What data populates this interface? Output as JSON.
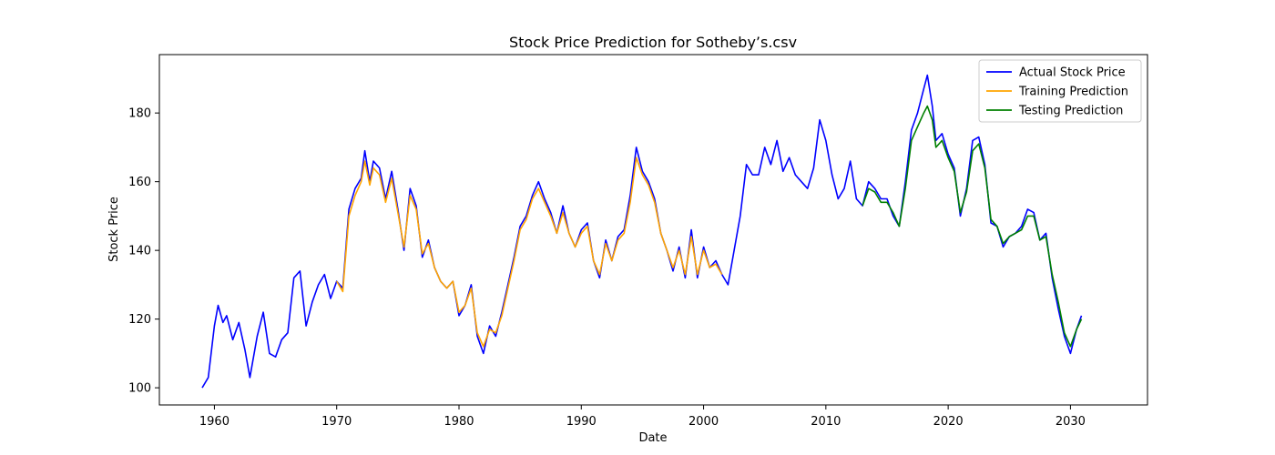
{
  "chart_data": {
    "type": "line",
    "title": "Stock Price Prediction for Sotheby’s.csv",
    "xlabel": "Date",
    "ylabel": "Stock Price",
    "xlim": [
      1955.5,
      2036.3
    ],
    "ylim": [
      95,
      197
    ],
    "x_ticks": [
      1960,
      1970,
      1980,
      1990,
      2000,
      2010,
      2020,
      2030
    ],
    "y_ticks": [
      100,
      120,
      140,
      160,
      180
    ],
    "grid": false,
    "legend_position": "top-right",
    "series": [
      {
        "name": "Actual Stock Price",
        "color": "#0000ff",
        "points": [
          [
            1959.0,
            100
          ],
          [
            1959.5,
            103
          ],
          [
            1960.0,
            118
          ],
          [
            1960.3,
            124
          ],
          [
            1960.7,
            119
          ],
          [
            1961.0,
            121
          ],
          [
            1961.5,
            114
          ],
          [
            1962.0,
            119
          ],
          [
            1962.5,
            111
          ],
          [
            1962.9,
            103
          ],
          [
            1963.5,
            115
          ],
          [
            1964.0,
            122
          ],
          [
            1964.5,
            110
          ],
          [
            1965.0,
            109
          ],
          [
            1965.5,
            114
          ],
          [
            1966.0,
            116
          ],
          [
            1966.5,
            132
          ],
          [
            1967.0,
            134
          ],
          [
            1967.5,
            118
          ],
          [
            1968.0,
            125
          ],
          [
            1968.5,
            130
          ],
          [
            1969.0,
            133
          ],
          [
            1969.5,
            126
          ],
          [
            1970.0,
            131
          ],
          [
            1970.5,
            129
          ],
          [
            1971.0,
            152
          ],
          [
            1971.5,
            158
          ],
          [
            1972.0,
            161
          ],
          [
            1972.3,
            169
          ],
          [
            1972.7,
            160
          ],
          [
            1973.0,
            166
          ],
          [
            1973.5,
            164
          ],
          [
            1974.0,
            155
          ],
          [
            1974.5,
            163
          ],
          [
            1975.0,
            152
          ],
          [
            1975.5,
            140
          ],
          [
            1976.0,
            158
          ],
          [
            1976.5,
            153
          ],
          [
            1977.0,
            138
          ],
          [
            1977.5,
            143
          ],
          [
            1978.0,
            135
          ],
          [
            1978.5,
            131
          ],
          [
            1979.0,
            129
          ],
          [
            1979.5,
            131
          ],
          [
            1980.0,
            121
          ],
          [
            1980.5,
            124
          ],
          [
            1981.0,
            130
          ],
          [
            1981.5,
            115
          ],
          [
            1982.0,
            110
          ],
          [
            1982.5,
            118
          ],
          [
            1983.0,
            115
          ],
          [
            1983.5,
            122
          ],
          [
            1984.0,
            130
          ],
          [
            1984.5,
            138
          ],
          [
            1985.0,
            147
          ],
          [
            1985.5,
            150
          ],
          [
            1986.0,
            156
          ],
          [
            1986.5,
            160
          ],
          [
            1987.0,
            155
          ],
          [
            1987.5,
            151
          ],
          [
            1988.0,
            145
          ],
          [
            1988.5,
            153
          ],
          [
            1989.0,
            145
          ],
          [
            1989.5,
            141
          ],
          [
            1990.0,
            146
          ],
          [
            1990.5,
            148
          ],
          [
            1991.0,
            137
          ],
          [
            1991.5,
            132
          ],
          [
            1992.0,
            143
          ],
          [
            1992.5,
            137
          ],
          [
            1993.0,
            144
          ],
          [
            1993.5,
            146
          ],
          [
            1994.0,
            156
          ],
          [
            1994.5,
            170
          ],
          [
            1995.0,
            163
          ],
          [
            1995.5,
            160
          ],
          [
            1996.0,
            155
          ],
          [
            1996.5,
            145
          ],
          [
            1997.0,
            140
          ],
          [
            1997.5,
            134
          ],
          [
            1998.0,
            141
          ],
          [
            1998.5,
            132
          ],
          [
            1999.0,
            146
          ],
          [
            1999.5,
            132
          ],
          [
            2000.0,
            141
          ],
          [
            2000.5,
            135
          ],
          [
            2001.0,
            137
          ],
          [
            2001.5,
            133
          ],
          [
            2002.0,
            130
          ],
          [
            2002.5,
            140
          ],
          [
            2003.0,
            150
          ],
          [
            2003.5,
            165
          ],
          [
            2004.0,
            162
          ],
          [
            2004.5,
            162
          ],
          [
            2005.0,
            170
          ],
          [
            2005.5,
            165
          ],
          [
            2006.0,
            172
          ],
          [
            2006.5,
            163
          ],
          [
            2007.0,
            167
          ],
          [
            2007.5,
            162
          ],
          [
            2008.0,
            160
          ],
          [
            2008.5,
            158
          ],
          [
            2009.0,
            164
          ],
          [
            2009.5,
            178
          ],
          [
            2010.0,
            172
          ],
          [
            2010.5,
            162
          ],
          [
            2011.0,
            155
          ],
          [
            2011.5,
            158
          ],
          [
            2012.0,
            166
          ],
          [
            2012.5,
            155
          ],
          [
            2013.0,
            153
          ],
          [
            2013.5,
            160
          ],
          [
            2014.0,
            158
          ],
          [
            2014.5,
            155
          ],
          [
            2015.0,
            155
          ],
          [
            2015.5,
            150
          ],
          [
            2016.0,
            147
          ],
          [
            2016.5,
            160
          ],
          [
            2017.0,
            175
          ],
          [
            2017.5,
            180
          ],
          [
            2018.0,
            187
          ],
          [
            2018.3,
            191
          ],
          [
            2018.7,
            182
          ],
          [
            2019.0,
            172
          ],
          [
            2019.5,
            174
          ],
          [
            2020.0,
            168
          ],
          [
            2020.5,
            164
          ],
          [
            2021.0,
            150
          ],
          [
            2021.5,
            158
          ],
          [
            2022.0,
            172
          ],
          [
            2022.5,
            173
          ],
          [
            2023.0,
            165
          ],
          [
            2023.5,
            148
          ],
          [
            2024.0,
            147
          ],
          [
            2024.5,
            141
          ],
          [
            2025.0,
            144
          ],
          [
            2025.5,
            145
          ],
          [
            2026.0,
            147
          ],
          [
            2026.5,
            152
          ],
          [
            2027.0,
            151
          ],
          [
            2027.5,
            143
          ],
          [
            2028.0,
            145
          ],
          [
            2028.5,
            132
          ],
          [
            2029.0,
            123
          ],
          [
            2029.5,
            115
          ],
          [
            2030.0,
            110
          ],
          [
            2030.5,
            117
          ],
          [
            2030.9,
            121
          ]
        ]
      },
      {
        "name": "Training Prediction",
        "color": "#ffa500",
        "points": [
          [
            1970.0,
            131
          ],
          [
            1970.5,
            128
          ],
          [
            1971.0,
            150
          ],
          [
            1971.5,
            156
          ],
          [
            1972.0,
            160
          ],
          [
            1972.3,
            166
          ],
          [
            1972.7,
            159
          ],
          [
            1973.0,
            164
          ],
          [
            1973.5,
            162
          ],
          [
            1974.0,
            154
          ],
          [
            1974.5,
            161
          ],
          [
            1975.0,
            151
          ],
          [
            1975.5,
            141
          ],
          [
            1976.0,
            156
          ],
          [
            1976.5,
            152
          ],
          [
            1977.0,
            139
          ],
          [
            1977.5,
            142
          ],
          [
            1978.0,
            135
          ],
          [
            1978.5,
            131
          ],
          [
            1979.0,
            129
          ],
          [
            1979.5,
            131
          ],
          [
            1980.0,
            122
          ],
          [
            1980.5,
            124
          ],
          [
            1981.0,
            129
          ],
          [
            1981.5,
            116
          ],
          [
            1982.0,
            112
          ],
          [
            1982.5,
            117
          ],
          [
            1983.0,
            116
          ],
          [
            1983.5,
            121
          ],
          [
            1984.0,
            129
          ],
          [
            1984.5,
            137
          ],
          [
            1985.0,
            146
          ],
          [
            1985.5,
            149
          ],
          [
            1986.0,
            155
          ],
          [
            1986.5,
            158
          ],
          [
            1987.0,
            154
          ],
          [
            1987.5,
            150
          ],
          [
            1988.0,
            145
          ],
          [
            1988.5,
            151
          ],
          [
            1989.0,
            145
          ],
          [
            1989.5,
            141
          ],
          [
            1990.0,
            145
          ],
          [
            1990.5,
            147
          ],
          [
            1991.0,
            137
          ],
          [
            1991.5,
            133
          ],
          [
            1992.0,
            142
          ],
          [
            1992.5,
            137
          ],
          [
            1993.0,
            143
          ],
          [
            1993.5,
            145
          ],
          [
            1994.0,
            154
          ],
          [
            1994.5,
            167
          ],
          [
            1995.0,
            162
          ],
          [
            1995.5,
            159
          ],
          [
            1996.0,
            154
          ],
          [
            1996.5,
            145
          ],
          [
            1997.0,
            140
          ],
          [
            1997.5,
            135
          ],
          [
            1998.0,
            140
          ],
          [
            1998.5,
            133
          ],
          [
            1999.0,
            144
          ],
          [
            1999.5,
            133
          ],
          [
            2000.0,
            140
          ],
          [
            2000.5,
            135
          ],
          [
            2001.0,
            136
          ],
          [
            2001.5,
            133
          ]
        ]
      },
      {
        "name": "Testing Prediction",
        "color": "#008000",
        "points": [
          [
            2013.0,
            153
          ],
          [
            2013.5,
            158
          ],
          [
            2014.0,
            157
          ],
          [
            2014.5,
            154
          ],
          [
            2015.0,
            154
          ],
          [
            2015.5,
            151
          ],
          [
            2016.0,
            147
          ],
          [
            2016.5,
            158
          ],
          [
            2017.0,
            172
          ],
          [
            2017.5,
            176
          ],
          [
            2018.0,
            180
          ],
          [
            2018.3,
            182
          ],
          [
            2018.7,
            178
          ],
          [
            2019.0,
            170
          ],
          [
            2019.5,
            172
          ],
          [
            2020.0,
            167
          ],
          [
            2020.5,
            163
          ],
          [
            2021.0,
            151
          ],
          [
            2021.5,
            157
          ],
          [
            2022.0,
            169
          ],
          [
            2022.5,
            171
          ],
          [
            2023.0,
            164
          ],
          [
            2023.5,
            149
          ],
          [
            2024.0,
            147
          ],
          [
            2024.5,
            142
          ],
          [
            2025.0,
            144
          ],
          [
            2025.5,
            145
          ],
          [
            2026.0,
            146
          ],
          [
            2026.5,
            150
          ],
          [
            2027.0,
            150
          ],
          [
            2027.5,
            143
          ],
          [
            2028.0,
            144
          ],
          [
            2028.5,
            133
          ],
          [
            2029.0,
            125
          ],
          [
            2029.5,
            116
          ],
          [
            2030.0,
            112
          ],
          [
            2030.5,
            117
          ],
          [
            2030.9,
            120
          ]
        ]
      }
    ]
  }
}
